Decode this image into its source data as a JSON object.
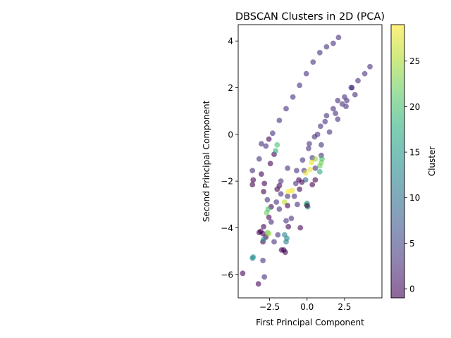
{
  "chart_data": {
    "type": "scatter",
    "title": "DBSCAN Clusters in 2D (PCA)",
    "xlabel": "First Principal Component",
    "ylabel": "Second Principal Component",
    "xlim": [
      -4.6,
      5.0
    ],
    "ylim": [
      -7.0,
      4.7
    ],
    "x_ticks": [
      -2.5,
      0.0,
      2.5
    ],
    "x_tick_labels": [
      "−2.5",
      "0.0",
      "2.5"
    ],
    "y_ticks": [
      -6,
      -4,
      -2,
      0,
      2,
      4
    ],
    "y_tick_labels": [
      "−6",
      "−4",
      "−2",
      "0",
      "2",
      "4"
    ],
    "grid": false,
    "marker_alpha": 0.6,
    "colorbar": {
      "label": "Cluster",
      "colormap": "viridis",
      "range": [
        -1,
        29
      ],
      "ticks": [
        0,
        5,
        10,
        15,
        20,
        25
      ],
      "tick_labels": [
        "0",
        "5",
        "10",
        "15",
        "20",
        "25"
      ]
    },
    "series": [
      {
        "points": [
          {
            "x": -3.65,
            "y": -1.55,
            "c": 3
          },
          {
            "x": -3.2,
            "y": -1.05,
            "c": 3
          },
          {
            "x": -2.75,
            "y": -0.5,
            "c": 3
          },
          {
            "x": -2.3,
            "y": 0.05,
            "c": 3
          },
          {
            "x": -1.85,
            "y": 0.6,
            "c": 3
          },
          {
            "x": -1.4,
            "y": 1.1,
            "c": 3
          },
          {
            "x": -0.95,
            "y": 1.6,
            "c": 3
          },
          {
            "x": -0.5,
            "y": 2.1,
            "c": 3
          },
          {
            "x": -0.05,
            "y": 2.6,
            "c": 3
          },
          {
            "x": 0.4,
            "y": 3.1,
            "c": 3
          },
          {
            "x": 0.85,
            "y": 3.5,
            "c": 3
          },
          {
            "x": 1.3,
            "y": 3.75,
            "c": 3
          },
          {
            "x": 1.75,
            "y": 3.9,
            "c": 3
          },
          {
            "x": 2.1,
            "y": 4.15,
            "c": 3
          },
          {
            "x": -3.6,
            "y": -1.95,
            "c": -1
          },
          {
            "x": -3.65,
            "y": -2.15,
            "c": -1
          },
          {
            "x": -3.05,
            "y": -0.4,
            "c": 3
          },
          {
            "x": -2.55,
            "y": -0.2,
            "c": -1
          },
          {
            "x": -2.2,
            "y": -0.85,
            "c": -1
          },
          {
            "x": -2.0,
            "y": -0.45,
            "c": 20
          },
          {
            "x": -2.1,
            "y": -0.7,
            "c": 18
          },
          {
            "x": -2.45,
            "y": -1.25,
            "c": -1
          },
          {
            "x": -3.05,
            "y": -1.7,
            "c": -1
          },
          {
            "x": -2.85,
            "y": -2.1,
            "c": -1
          },
          {
            "x": -2.9,
            "y": -2.45,
            "c": -1
          },
          {
            "x": -2.65,
            "y": -2.8,
            "c": 3
          },
          {
            "x": -2.4,
            "y": -3.1,
            "c": -1
          },
          {
            "x": -0.7,
            "y": -1.55,
            "c": 3
          },
          {
            "x": -0.3,
            "y": -1.1,
            "c": 3
          },
          {
            "x": 0.1,
            "y": -0.6,
            "c": 3
          },
          {
            "x": 0.5,
            "y": -0.1,
            "c": 3
          },
          {
            "x": 0.9,
            "y": 0.35,
            "c": 3
          },
          {
            "x": 1.3,
            "y": 0.8,
            "c": 3
          },
          {
            "x": 1.75,
            "y": 1.1,
            "c": 3
          },
          {
            "x": 2.05,
            "y": 1.45,
            "c": 3
          },
          {
            "x": 2.5,
            "y": 1.6,
            "c": 3
          },
          {
            "x": 2.95,
            "y": 2.0,
            "c": 3
          },
          {
            "x": 3.4,
            "y": 2.3,
            "c": 3
          },
          {
            "x": 3.85,
            "y": 2.6,
            "c": 3
          },
          {
            "x": 4.2,
            "y": 2.9,
            "c": 3
          },
          {
            "x": 3.2,
            "y": 1.7,
            "c": 3
          },
          {
            "x": 2.6,
            "y": 1.2,
            "c": 3
          },
          {
            "x": 2.05,
            "y": 0.65,
            "c": 3
          },
          {
            "x": 1.5,
            "y": 0.1,
            "c": 3
          },
          {
            "x": 0.95,
            "y": -0.45,
            "c": 3
          },
          {
            "x": 0.35,
            "y": -1.0,
            "c": 3
          },
          {
            "x": -0.2,
            "y": -1.55,
            "c": 3
          },
          {
            "x": -0.75,
            "y": -2.1,
            "c": 3
          },
          {
            "x": -1.3,
            "y": -2.65,
            "c": 3
          },
          {
            "x": -1.85,
            "y": -3.2,
            "c": 3
          },
          {
            "x": -2.4,
            "y": -3.75,
            "c": 3
          },
          {
            "x": -2.95,
            "y": -4.25,
            "c": -1
          },
          {
            "x": -3.2,
            "y": -4.2,
            "c": -1
          },
          {
            "x": 0.3,
            "y": -1.2,
            "c": 28
          },
          {
            "x": 0.2,
            "y": -1.5,
            "c": 28
          },
          {
            "x": -0.1,
            "y": -1.65,
            "c": 28
          },
          {
            "x": 0.55,
            "y": -1.05,
            "c": 24
          },
          {
            "x": 0.95,
            "y": -1.2,
            "c": 23
          },
          {
            "x": 0.85,
            "y": -1.35,
            "c": 22
          },
          {
            "x": 0.85,
            "y": -1.6,
            "c": 17
          },
          {
            "x": -0.1,
            "y": -1.95,
            "c": 8
          },
          {
            "x": -0.35,
            "y": -2.05,
            "c": -1
          },
          {
            "x": -0.55,
            "y": -1.95,
            "c": -1
          },
          {
            "x": -0.5,
            "y": -2.35,
            "c": -1
          },
          {
            "x": 0.35,
            "y": -2.15,
            "c": -1
          },
          {
            "x": 0.55,
            "y": -1.95,
            "c": -1
          },
          {
            "x": -1.0,
            "y": -2.4,
            "c": 28
          },
          {
            "x": -1.25,
            "y": -2.45,
            "c": 29
          },
          {
            "x": -2.0,
            "y": -2.35,
            "c": -1
          },
          {
            "x": -1.85,
            "y": -2.2,
            "c": -1
          },
          {
            "x": -1.75,
            "y": -2.55,
            "c": 3
          },
          {
            "x": -1.5,
            "y": -2.9,
            "c": 26
          },
          {
            "x": -1.3,
            "y": -3.05,
            "c": -1
          },
          {
            "x": -2.05,
            "y": -2.9,
            "c": 3
          },
          {
            "x": -2.7,
            "y": -3.35,
            "c": 22
          },
          {
            "x": -2.6,
            "y": -3.2,
            "c": 20
          },
          {
            "x": -2.55,
            "y": -3.55,
            "c": -1
          },
          {
            "x": -2.9,
            "y": -3.95,
            "c": -1
          },
          {
            "x": -2.75,
            "y": -4.4,
            "c": -1
          },
          {
            "x": -2.65,
            "y": -4.2,
            "c": 22
          },
          {
            "x": -2.55,
            "y": -4.25,
            "c": 24
          },
          {
            "x": -2.95,
            "y": -4.6,
            "c": -1
          },
          {
            "x": -2.9,
            "y": -4.5,
            "c": 14
          },
          {
            "x": -3.1,
            "y": -4.15,
            "c": -1
          },
          {
            "x": -2.2,
            "y": -4.6,
            "c": 3
          },
          {
            "x": -1.95,
            "y": -4.3,
            "c": 3
          },
          {
            "x": -1.5,
            "y": -4.3,
            "c": 12
          },
          {
            "x": -1.35,
            "y": -4.45,
            "c": 13
          },
          {
            "x": -1.4,
            "y": -4.6,
            "c": 12
          },
          {
            "x": -1.55,
            "y": -4.95,
            "c": -1
          },
          {
            "x": -1.45,
            "y": -5.05,
            "c": -1
          },
          {
            "x": -1.7,
            "y": -4.95,
            "c": -1
          },
          {
            "x": -1.25,
            "y": -3.95,
            "c": -1
          },
          {
            "x": -1.4,
            "y": -3.7,
            "c": 3
          },
          {
            "x": -1.05,
            "y": -3.6,
            "c": 3
          },
          {
            "x": -0.45,
            "y": -4.0,
            "c": -1
          },
          {
            "x": 0.0,
            "y": -2.95,
            "c": 14
          },
          {
            "x": 0.05,
            "y": -3.1,
            "c": 16
          },
          {
            "x": -0.05,
            "y": -3.0,
            "c": 20
          },
          {
            "x": 0.0,
            "y": -3.05,
            "c": -1
          },
          {
            "x": -0.85,
            "y": -2.65,
            "c": 3
          },
          {
            "x": -0.65,
            "y": -3.0,
            "c": 3
          },
          {
            "x": -3.65,
            "y": -5.3,
            "c": 12
          },
          {
            "x": -3.6,
            "y": -5.25,
            "c": 14
          },
          {
            "x": -2.95,
            "y": -5.4,
            "c": 3
          },
          {
            "x": -2.85,
            "y": -6.1,
            "c": 3
          },
          {
            "x": -4.3,
            "y": -5.95,
            "c": -1
          },
          {
            "x": -3.25,
            "y": -6.4,
            "c": -1
          },
          {
            "x": 3.0,
            "y": 2.0,
            "c": 3
          },
          {
            "x": 2.65,
            "y": 1.45,
            "c": 3
          },
          {
            "x": 2.35,
            "y": 1.3,
            "c": 3
          },
          {
            "x": 1.9,
            "y": 0.9,
            "c": 3
          },
          {
            "x": 1.2,
            "y": 0.55,
            "c": 3
          },
          {
            "x": 0.7,
            "y": 0.0,
            "c": 3
          },
          {
            "x": 0.15,
            "y": -0.4,
            "c": 3
          },
          {
            "x": -1.3,
            "y": -1.45,
            "c": 3
          },
          {
            "x": -1.75,
            "y": -2.0,
            "c": 3
          },
          {
            "x": 0.95,
            "y": -0.9,
            "c": 3
          },
          {
            "x": 1.0,
            "y": -1.05,
            "c": 20
          },
          {
            "x": 0.55,
            "y": -1.45,
            "c": 3
          }
        ]
      }
    ]
  }
}
